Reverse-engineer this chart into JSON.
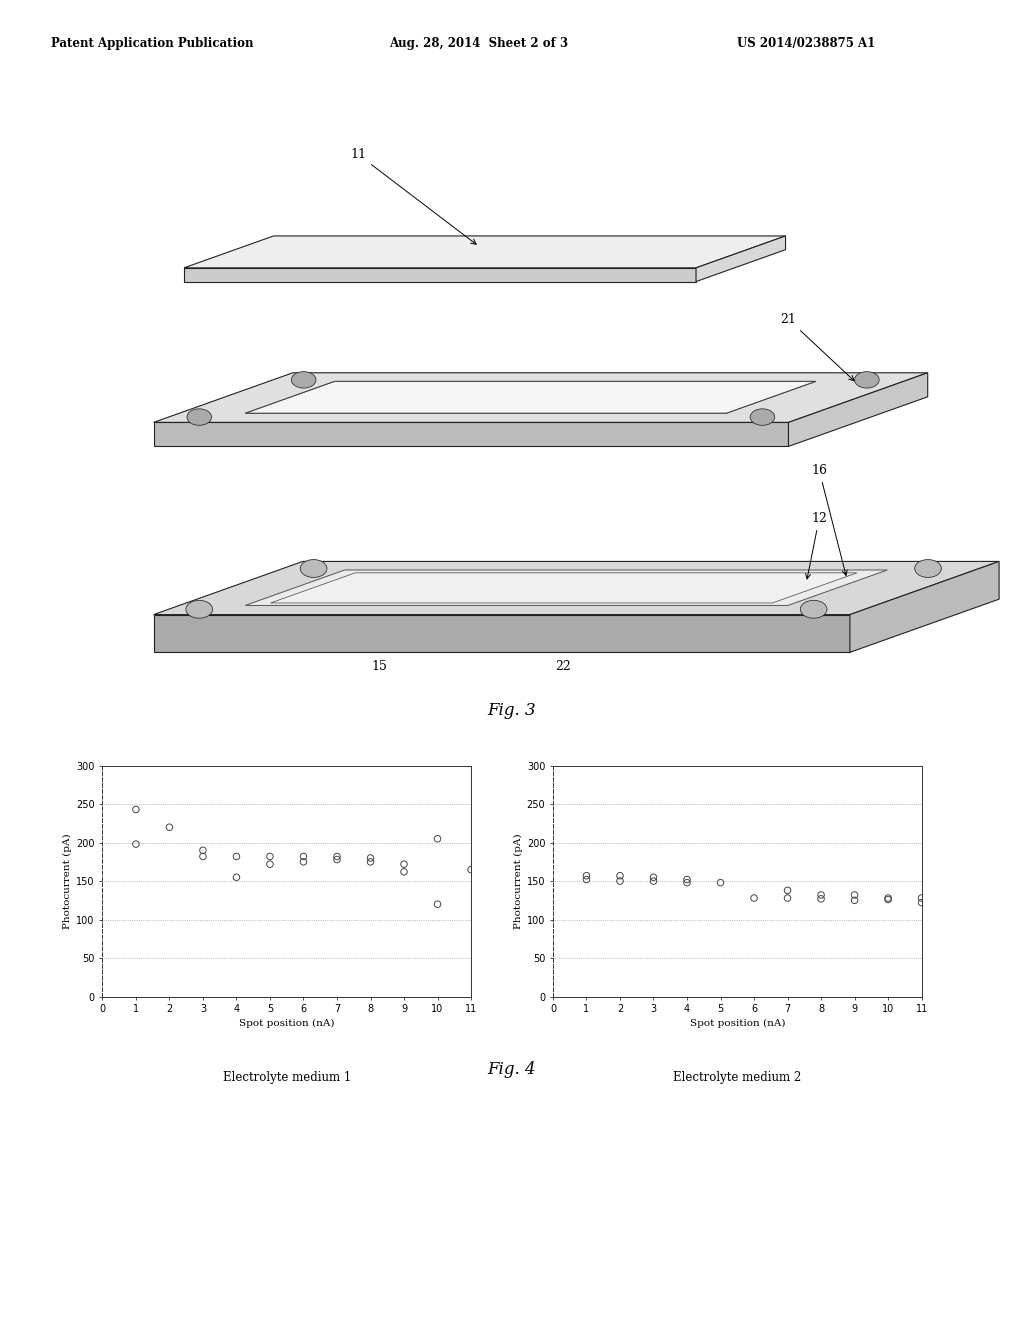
{
  "header_left": "Patent Application Publication",
  "header_mid": "Aug. 28, 2014  Sheet 2 of 3",
  "header_right": "US 2014/0238875 A1",
  "fig3_label": "Fig. 3",
  "fig4_label": "Fig. 4",
  "plot1": {
    "title": "Electrolyte medium 1",
    "xlabel": "Spot position (nA)",
    "ylabel": "Photocurrent (pA)",
    "xlim": [
      0,
      11
    ],
    "ylim": [
      0,
      300
    ],
    "yticks": [
      0,
      50,
      100,
      150,
      200,
      250,
      300
    ],
    "xticks": [
      0,
      1,
      2,
      3,
      4,
      5,
      6,
      7,
      8,
      9,
      10,
      11
    ],
    "data_x": [
      1,
      1,
      2,
      3,
      3,
      4,
      4,
      5,
      5,
      6,
      6,
      7,
      7,
      8,
      8,
      9,
      9,
      10,
      10,
      11
    ],
    "data_y": [
      243,
      198,
      220,
      190,
      182,
      182,
      155,
      182,
      172,
      182,
      175,
      182,
      178,
      180,
      175,
      172,
      162,
      205,
      120,
      165
    ]
  },
  "plot2": {
    "title": "Electrolyte medium 2",
    "xlabel": "Spot position (nA)",
    "ylabel": "Photocurrent (pA)",
    "xlim": [
      0,
      11
    ],
    "ylim": [
      0,
      300
    ],
    "yticks": [
      0,
      50,
      100,
      150,
      200,
      250,
      300
    ],
    "xticks": [
      0,
      1,
      2,
      3,
      4,
      5,
      6,
      7,
      8,
      9,
      10,
      11
    ],
    "data_x": [
      1,
      1,
      2,
      2,
      3,
      3,
      4,
      4,
      5,
      6,
      7,
      7,
      8,
      8,
      9,
      9,
      10,
      10,
      11,
      11
    ],
    "data_y": [
      157,
      152,
      157,
      150,
      155,
      150,
      152,
      148,
      148,
      128,
      138,
      128,
      132,
      127,
      132,
      125,
      126,
      128,
      128,
      122
    ]
  },
  "bg_color": "#ffffff",
  "marker_color": "#444444"
}
